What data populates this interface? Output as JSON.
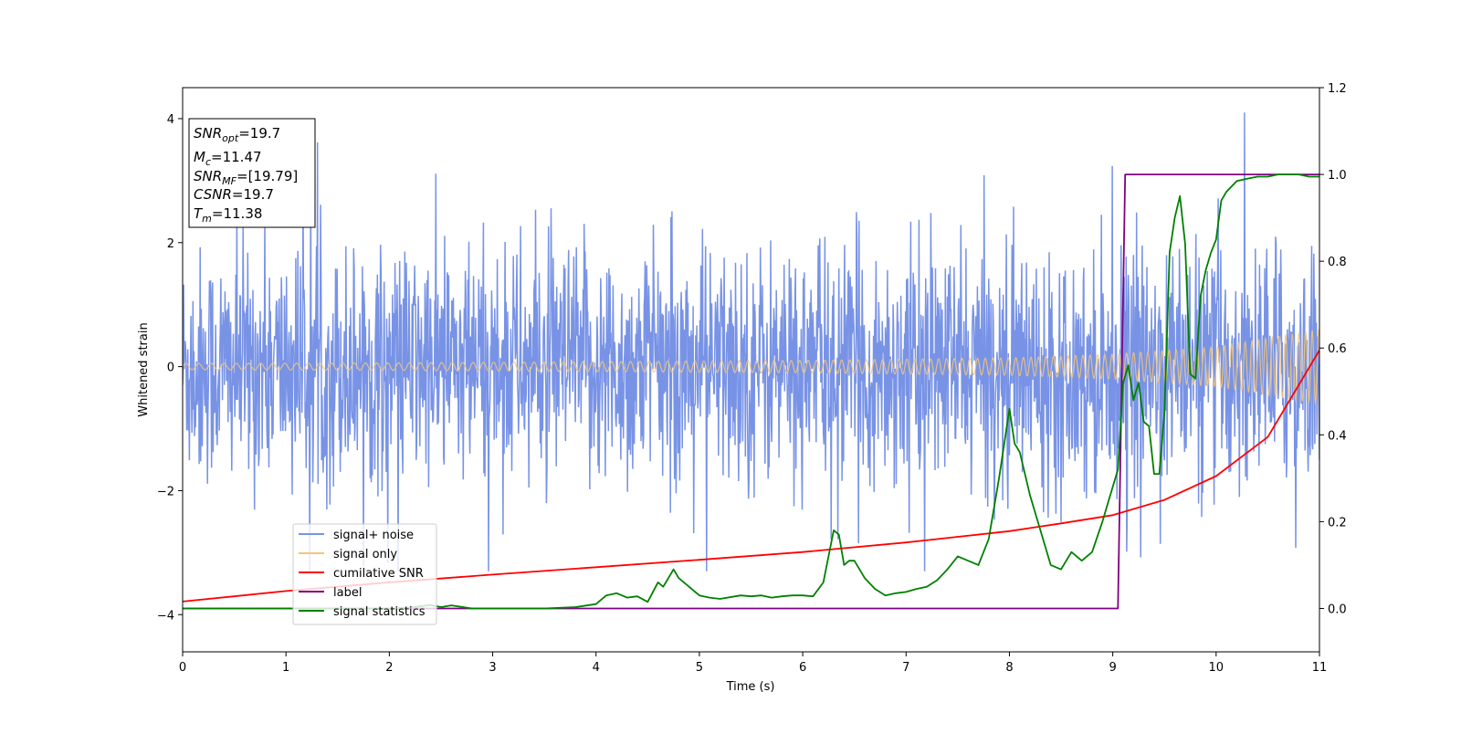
{
  "chart_data": {
    "type": "line",
    "xlabel": "Time (s)",
    "ylabel": "Whitened strain",
    "xlim": [
      0,
      11
    ],
    "ylim": [
      -4.6,
      4.5
    ],
    "y2lim": [
      -0.1,
      1.2
    ],
    "x_ticks": [
      "0",
      "1",
      "2",
      "3",
      "4",
      "5",
      "6",
      "7",
      "8",
      "9",
      "10",
      "11"
    ],
    "y_ticks": [
      "−4",
      "−2",
      "0",
      "2",
      "4"
    ],
    "y2_ticks": [
      "0.0",
      "0.2",
      "0.4",
      "0.6",
      "0.8",
      "1.0",
      "1.2"
    ],
    "grid": false,
    "legend_position": "lower-left",
    "annotation": {
      "line1": {
        "main": "SNR",
        "sub": "opt",
        "value": "=19.7"
      },
      "line2": {
        "main": "M",
        "sub": "c",
        "value": "=11.47"
      },
      "line3": {
        "main": "SNR",
        "sub": "MF",
        "value": "=[19.79]"
      },
      "line4": {
        "main": "CSNR",
        "sub": "",
        "value": "=19.7"
      },
      "line5": {
        "main": "T",
        "sub": "m",
        "value": "=11.38"
      }
    },
    "series": [
      {
        "name": "signal+ noise",
        "color": "#7893e6",
        "axis": "left",
        "description_level": "noise amplitude ~ std 1.0 about 0, peaks to ±4.1"
      },
      {
        "name": "signal only",
        "color": "#f5c577",
        "axis": "left",
        "envelope": {
          "x": [
            0,
            2,
            4,
            6,
            8,
            9,
            10,
            11
          ],
          "y": [
            0.05,
            0.06,
            0.08,
            0.1,
            0.14,
            0.2,
            0.32,
            0.6
          ]
        }
      },
      {
        "name": "cumilative SNR",
        "color": "#ff0000",
        "axis": "right",
        "x": [
          0,
          1,
          2,
          3,
          4,
          5,
          6,
          7,
          8,
          8.5,
          9,
          9.5,
          10,
          10.5,
          11
        ],
        "y": [
          0.016,
          0.04,
          0.06,
          0.078,
          0.095,
          0.112,
          0.13,
          0.152,
          0.178,
          0.196,
          0.215,
          0.25,
          0.305,
          0.395,
          0.595
        ]
      },
      {
        "name": "label",
        "color": "#800080",
        "axis": "right",
        "x": [
          0,
          9.05,
          9.12,
          11
        ],
        "y": [
          0,
          0,
          1.0,
          1.0
        ]
      },
      {
        "name": "signal statistics",
        "color": "#008000",
        "axis": "right",
        "x": [
          0,
          0.5,
          1,
          1.5,
          2,
          2.2,
          2.4,
          2.5,
          2.6,
          2.8,
          3,
          3.5,
          3.8,
          4,
          4.1,
          4.2,
          4.3,
          4.4,
          4.5,
          4.6,
          4.65,
          4.7,
          4.75,
          4.8,
          4.9,
          5,
          5.1,
          5.2,
          5.4,
          5.5,
          5.6,
          5.7,
          5.8,
          5.9,
          6,
          6.1,
          6.2,
          6.3,
          6.35,
          6.4,
          6.45,
          6.5,
          6.6,
          6.7,
          6.8,
          6.9,
          7,
          7.1,
          7.2,
          7.3,
          7.4,
          7.5,
          7.6,
          7.7,
          7.8,
          7.9,
          8,
          8.05,
          8.1,
          8.2,
          8.3,
          8.4,
          8.5,
          8.6,
          8.7,
          8.8,
          8.9,
          9,
          9.05,
          9.1,
          9.15,
          9.2,
          9.25,
          9.3,
          9.35,
          9.4,
          9.45,
          9.5,
          9.55,
          9.6,
          9.65,
          9.7,
          9.75,
          9.8,
          9.85,
          9.9,
          9.95,
          10,
          10.05,
          10.1,
          10.2,
          10.3,
          10.4,
          10.5,
          10.6,
          10.7,
          10.8,
          10.9,
          11
        ],
        "y": [
          0.0,
          0.0,
          0.0,
          0.0,
          0.0,
          0.002,
          0.008,
          0.003,
          0.007,
          0.0,
          0.0,
          0.0,
          0.003,
          0.01,
          0.03,
          0.035,
          0.025,
          0.028,
          0.015,
          0.06,
          0.05,
          0.07,
          0.09,
          0.07,
          0.05,
          0.03,
          0.025,
          0.022,
          0.03,
          0.028,
          0.03,
          0.025,
          0.028,
          0.03,
          0.03,
          0.028,
          0.06,
          0.18,
          0.17,
          0.1,
          0.11,
          0.11,
          0.07,
          0.045,
          0.03,
          0.035,
          0.038,
          0.045,
          0.05,
          0.065,
          0.09,
          0.12,
          0.11,
          0.1,
          0.16,
          0.3,
          0.46,
          0.38,
          0.36,
          0.26,
          0.18,
          0.1,
          0.09,
          0.13,
          0.11,
          0.13,
          0.2,
          0.28,
          0.32,
          0.52,
          0.56,
          0.48,
          0.52,
          0.43,
          0.42,
          0.31,
          0.31,
          0.45,
          0.82,
          0.9,
          0.95,
          0.84,
          0.54,
          0.53,
          0.72,
          0.78,
          0.82,
          0.85,
          0.94,
          0.96,
          0.985,
          0.99,
          0.995,
          0.995,
          1.0,
          1.0,
          1.0,
          0.995,
          0.995
        ]
      }
    ]
  }
}
